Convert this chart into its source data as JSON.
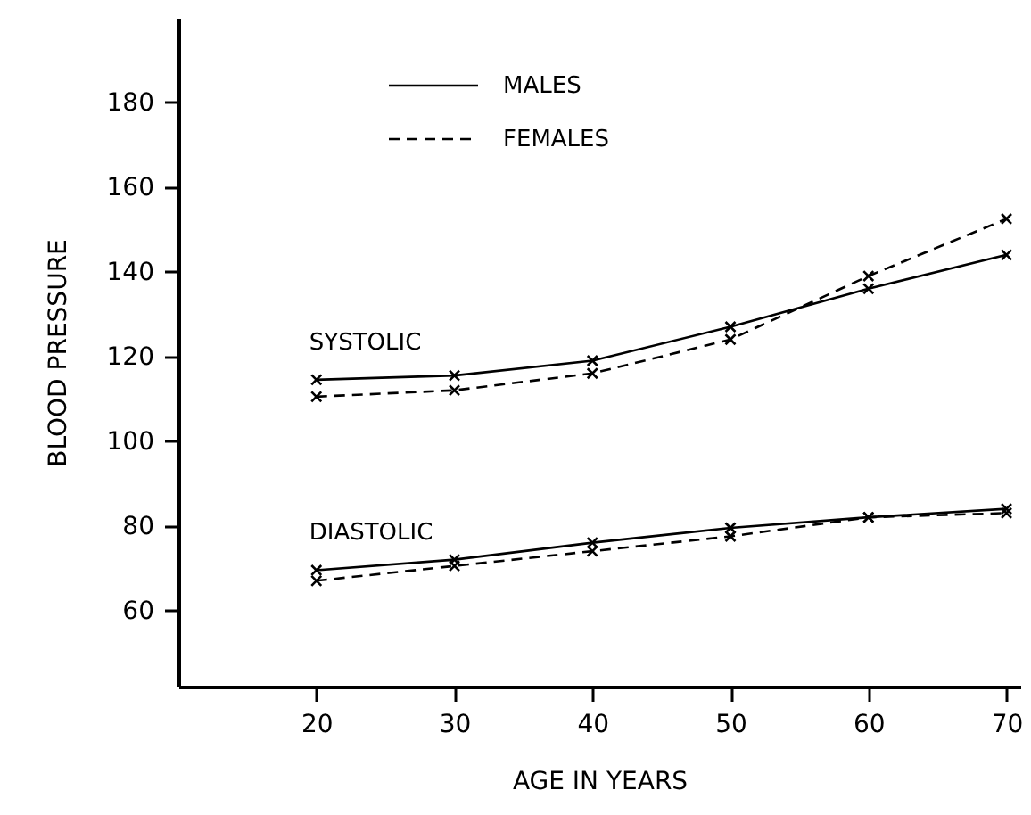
{
  "chart_data": {
    "type": "line",
    "xlabel": "AGE  IN  YEARS",
    "ylabel": "BLOOD      PRESSURE",
    "x": [
      20,
      30,
      40,
      50,
      60,
      70
    ],
    "series": [
      {
        "name": "MALES",
        "color": "#000000",
        "line_style": "solid",
        "values": [
          114.5,
          115.5,
          119,
          127,
          136,
          144
        ]
      },
      {
        "name": "FEMALES",
        "color": "#000000",
        "line_style": "dashed",
        "values": [
          110.5,
          112,
          116,
          124,
          139,
          152.5
        ]
      },
      {
        "color": "#000000",
        "line_style": "solid",
        "values": [
          69.5,
          72,
          76,
          79.5,
          82,
          84
        ]
      },
      {
        "color": "#000000",
        "line_style": "dashed",
        "values": [
          67,
          70.5,
          74,
          77.5,
          82,
          83
        ]
      }
    ],
    "xlim": [
      10,
      71
    ],
    "xticks": [
      20,
      30,
      40,
      50,
      60,
      70
    ],
    "ylim": [
      42,
      200
    ],
    "yticks": [
      60,
      80,
      100,
      120,
      140,
      160,
      180
    ],
    "annotations": [
      "SYSTOLIC",
      "DIASTOLIC"
    ],
    "marker": "cross",
    "grid": false,
    "legend": "top"
  }
}
